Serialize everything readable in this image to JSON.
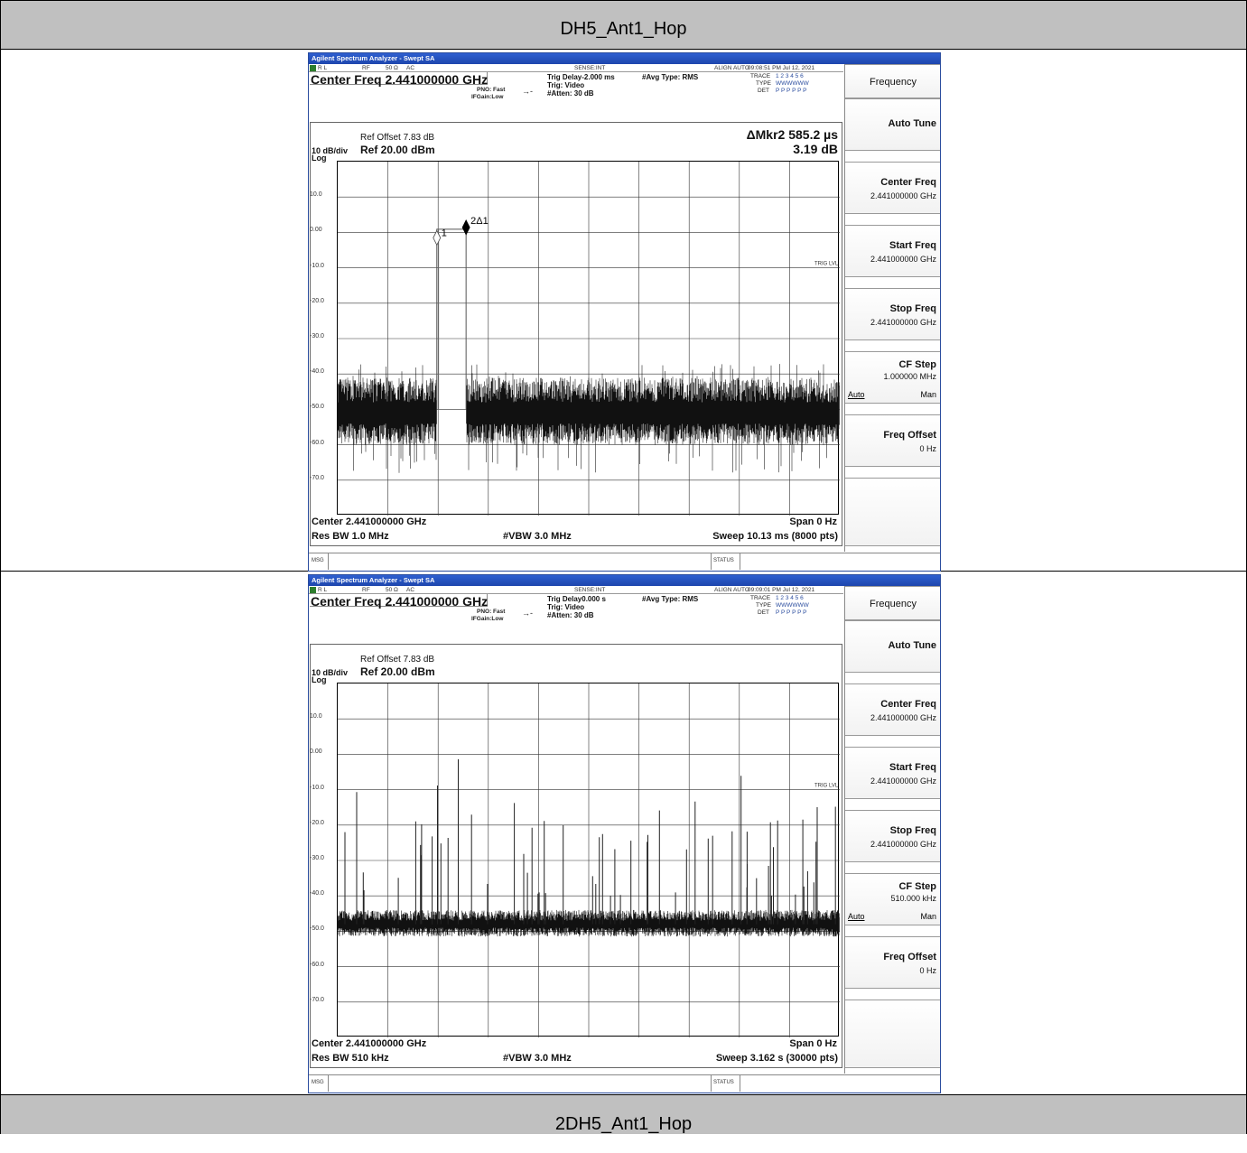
{
  "table": {
    "top_header": "DH5_Ant1_Hop",
    "bottom_header": "2DH5_Ant1_Hop"
  },
  "analyzers": [
    {
      "title": "Agilent Spectrum Analyzer - Swept SA",
      "status": {
        "rl": "R L",
        "rf": "RF",
        "ohm": "50 Ω",
        "ac": "AC",
        "sense": "SENSE:INT",
        "align": "ALIGN AUTO",
        "time": "09:08:51 PM Jul 12, 2021"
      },
      "center_freq_title": "Center Freq 2.441000000 GHz",
      "pno": "PNO: Fast",
      "ifgain": "IFGain:Low",
      "trig_delay": "Trig Delay-2.000 ms",
      "trig": "Trig: Video",
      "atten": "#Atten: 30 dB",
      "avg_type": "#Avg Type: RMS",
      "trace": {
        "trace_label": "TRACE",
        "trace": "1 2 3 4 5 6",
        "type_label": "TYPE",
        "type": "WWWWWW",
        "det_label": "DET",
        "det": "P P P P P P"
      },
      "ref_offset": "Ref Offset 7.83 dB",
      "scale": "10 dB/div",
      "ref": "Ref 20.00 dBm",
      "log": "Log",
      "marker_line1": "ΔMkr2 585.2 µs",
      "marker_line2": "3.19 dB",
      "marker_labels": {
        "m1": "1",
        "m2": "2Δ1"
      },
      "trig_lvl": "TRIG LVL",
      "y_ticks": [
        "10.0",
        "0.00",
        "-10.0",
        "-20.0",
        "-30.0",
        "-40.0",
        "-50.0",
        "-60.0",
        "-70.0"
      ],
      "center_bottom": "Center 2.441000000 GHz",
      "span": "Span 0 Hz",
      "res_bw": "Res BW 1.0 MHz",
      "vbw": "#VBW 3.0 MHz",
      "sweep": "Sweep  10.13 ms (8000 pts)",
      "msg": "MSG",
      "status_label": "STATUS",
      "softkeys": {
        "menu": "Frequency",
        "auto_tune": "Auto Tune",
        "center_freq": {
          "label": "Center Freq",
          "value": "2.441000000 GHz"
        },
        "start_freq": {
          "label": "Start Freq",
          "value": "2.441000000 GHz"
        },
        "stop_freq": {
          "label": "Stop Freq",
          "value": "2.441000000 GHz"
        },
        "cf_step": {
          "label": "CF Step",
          "value": "1.000000 MHz",
          "auto": "Auto",
          "man": "Man"
        },
        "freq_offset": {
          "label": "Freq Offset",
          "value": "0 Hz"
        }
      },
      "chart_data": {
        "type": "line",
        "ylabel": "dBm",
        "ylim": [
          -80,
          20
        ],
        "xlim_ms": [
          0,
          10.13
        ],
        "series": [
          {
            "noise_floor_dbm": -50,
            "burst": {
              "start_ms": 2.0,
              "end_ms": 2.59,
              "level_dbm": 0.9
            }
          }
        ],
        "markers": [
          {
            "name": "1",
            "x_ms": 2.0,
            "y_dbm": 0
          },
          {
            "name": "2Δ1",
            "x_ms": 2.59,
            "y_dbm": 3.19
          }
        ]
      }
    },
    {
      "title": "Agilent Spectrum Analyzer - Swept SA",
      "status": {
        "rl": "R L",
        "rf": "RF",
        "ohm": "50 Ω",
        "ac": "AC",
        "sense": "SENSE:INT",
        "align": "ALIGN AUTO",
        "time": "09:09:01 PM Jul 12, 2021"
      },
      "center_freq_title": "Center Freq 2.441000000 GHz",
      "pno": "PNO: Fast",
      "ifgain": "IFGain:Low",
      "trig_delay": "Trig Delay0.000 s",
      "trig": "Trig: Video",
      "atten": "#Atten: 30 dB",
      "avg_type": "#Avg Type: RMS",
      "trace": {
        "trace_label": "TRACE",
        "trace": "1 2 3 4 5 6",
        "type_label": "TYPE",
        "type": "WWWWWW",
        "det_label": "DET",
        "det": "P P P P P P"
      },
      "ref_offset": "Ref Offset 7.83 dB",
      "scale": "10 dB/div",
      "ref": "Ref 20.00 dBm",
      "log": "Log",
      "trig_lvl": "TRIG LVL",
      "y_ticks": [
        "10.0",
        "0.00",
        "-10.0",
        "-20.0",
        "-30.0",
        "-40.0",
        "-50.0",
        "-60.0",
        "-70.0"
      ],
      "center_bottom": "Center 2.441000000 GHz",
      "span": "Span 0 Hz",
      "res_bw": "Res BW 510 kHz",
      "vbw": "#VBW 3.0 MHz",
      "sweep": "Sweep  3.162 s (30000 pts)",
      "msg": "MSG",
      "status_label": "STATUS",
      "softkeys": {
        "menu": "Frequency",
        "auto_tune": "Auto Tune",
        "center_freq": {
          "label": "Center Freq",
          "value": "2.441000000 GHz"
        },
        "start_freq": {
          "label": "Start Freq",
          "value": "2.441000000 GHz"
        },
        "stop_freq": {
          "label": "Stop Freq",
          "value": "2.441000000 GHz"
        },
        "cf_step": {
          "label": "CF Step",
          "value": "510.000 kHz",
          "auto": "Auto",
          "man": "Man"
        },
        "freq_offset": {
          "label": "Freq Offset",
          "value": "0 Hz"
        }
      },
      "chart_data": {
        "type": "line",
        "ylabel": "dBm",
        "ylim": [
          -80,
          20
        ],
        "xlim_s": [
          0,
          3.162
        ],
        "series": [
          {
            "noise_floor_dbm": -48,
            "spike_count": 60,
            "spike_peak_range_dbm": [
              -40,
              -1
            ]
          }
        ]
      }
    }
  ]
}
